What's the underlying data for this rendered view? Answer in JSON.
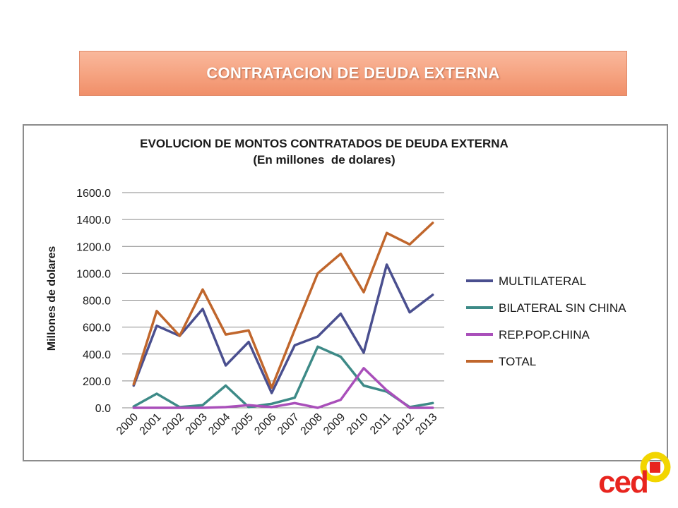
{
  "banner": {
    "title": "CONTRATACION DE DEUDA EXTERNA"
  },
  "chart_data": {
    "type": "line",
    "title": "EVOLUCION DE MONTOS CONTRATADOS DE DEUDA EXTERNA",
    "subtitle": "(En millones  de dolares)",
    "xlabel": "",
    "ylabel": "Millones de dolares",
    "ylim": [
      0,
      1600
    ],
    "yticks": [
      "0.0",
      "200.0",
      "400.0",
      "600.0",
      "800.0",
      "1000.0",
      "1200.0",
      "1400.0",
      "1600.0"
    ],
    "grid": true,
    "legend_position": "right",
    "categories": [
      "2000",
      "2001",
      "2002",
      "2003",
      "2004",
      "2005",
      "2006",
      "2007",
      "2008",
      "2009",
      "2010",
      "2011",
      "2012",
      "2013"
    ],
    "series": [
      {
        "name": "MULTILATERAL",
        "color": "#4a4f8f",
        "values": [
          165,
          610,
          535,
          735,
          315,
          490,
          110,
          465,
          530,
          700,
          410,
          1065,
          710,
          840
        ]
      },
      {
        "name": "BILATERAL SIN CHINA",
        "color": "#3d8a87",
        "values": [
          10,
          105,
          5,
          20,
          165,
          5,
          30,
          75,
          455,
          380,
          165,
          120,
          5,
          35
        ]
      },
      {
        "name": "REP.POP.CHINA",
        "color": "#a94fba",
        "values": [
          0,
          0,
          0,
          0,
          5,
          20,
          5,
          35,
          0,
          60,
          295,
          130,
          0,
          0
        ]
      },
      {
        "name": "TOTAL",
        "color": "#c0662c",
        "values": [
          175,
          720,
          535,
          880,
          545,
          575,
          150,
          580,
          1000,
          1145,
          860,
          1300,
          1215,
          1375
        ]
      }
    ]
  },
  "logo": {
    "text": "ced"
  }
}
